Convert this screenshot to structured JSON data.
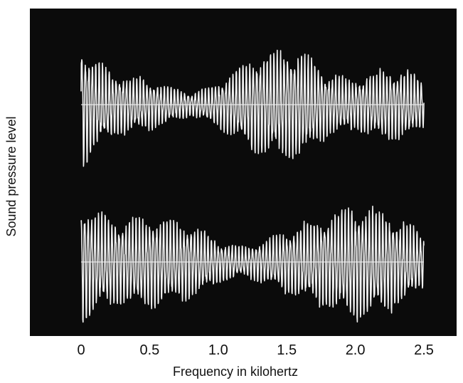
{
  "chart_data": {
    "type": "line",
    "xlabel": "Frequency in kilohertz",
    "ylabel": "Sound pressure level",
    "xlim": [
      0.0,
      2.5
    ],
    "x_ticks": [
      {
        "value": 0.0,
        "label": "0"
      },
      {
        "value": 0.5,
        "label": "0.5"
      },
      {
        "value": 1.0,
        "label": "1.0"
      },
      {
        "value": 1.5,
        "label": "1.5"
      },
      {
        "value": 2.0,
        "label": "2.0"
      },
      {
        "value": 2.5,
        "label": "2.5"
      }
    ],
    "grid": false,
    "colors": {
      "background": "#0b0b0b",
      "trace": "#f2f2f2",
      "baseline": "#d8d8d8",
      "text": "#111111"
    },
    "series": [
      {
        "position": "upper",
        "envelope": {
          "x": [
            0.0,
            0.1,
            0.25,
            0.5,
            0.8,
            1.0,
            1.2,
            1.4,
            1.6,
            1.8,
            2.0,
            2.2,
            2.4,
            2.5
          ],
          "amplitude": [
            0.85,
            0.6,
            0.4,
            0.32,
            0.15,
            0.28,
            0.55,
            0.68,
            0.7,
            0.4,
            0.33,
            0.45,
            0.42,
            0.3
          ]
        }
      },
      {
        "position": "lower",
        "envelope": {
          "x": [
            0.0,
            0.1,
            0.3,
            0.5,
            0.8,
            1.0,
            1.2,
            1.4,
            1.6,
            1.8,
            2.0,
            2.2,
            2.4,
            2.5
          ],
          "amplitude": [
            0.75,
            0.6,
            0.5,
            0.55,
            0.45,
            0.25,
            0.18,
            0.3,
            0.45,
            0.55,
            0.68,
            0.62,
            0.45,
            0.3
          ]
        }
      }
    ]
  }
}
